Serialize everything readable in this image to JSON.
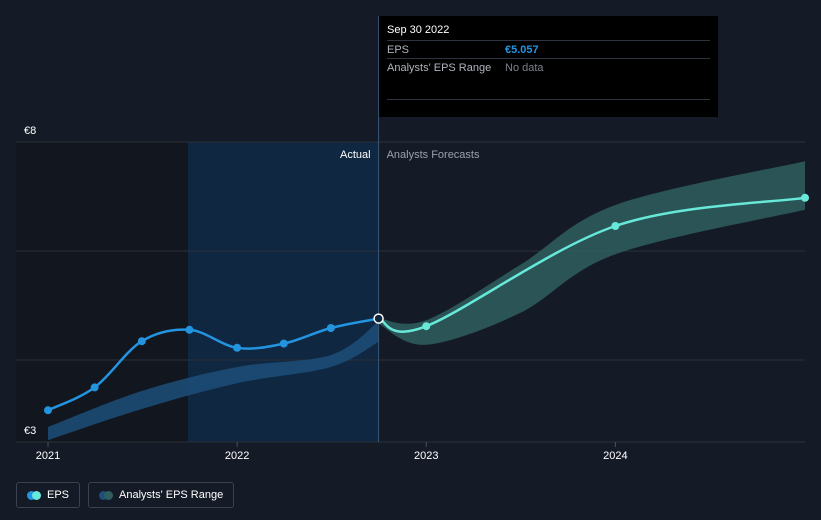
{
  "tooltip": {
    "date": "Sep 30 2022",
    "rows": [
      {
        "key": "EPS",
        "value": "€5.057"
      },
      {
        "key": "Analysts' EPS Range",
        "value": "No data"
      }
    ]
  },
  "sections": {
    "actual_label": "Actual",
    "forecast_label": "Analysts Forecasts"
  },
  "legend": {
    "eps_label": "EPS",
    "range_label": "Analysts' EPS Range"
  },
  "colors": {
    "background": "#151b26",
    "past_highlight": "#0f2740",
    "eps_actual": "#2394df",
    "eps_forecast": "#67e8d8",
    "range_actual": "#1c4f7a",
    "range_forecast": "#2e5e5f"
  },
  "chart_data": {
    "type": "line",
    "y_tick_labels": [
      "€3",
      "€8"
    ],
    "ylim": [
      3,
      8
    ],
    "x_tick_labels": [
      "2021",
      "2022",
      "2023",
      "2024"
    ],
    "xlim": [
      "2020-12-31",
      "2024-12-31"
    ],
    "grid": true,
    "series": [
      {
        "name": "EPS",
        "kind": "actual",
        "points": [
          {
            "x": "2020-12-31",
            "y": 3.53
          },
          {
            "x": "2021-03-31",
            "y": 3.91
          },
          {
            "x": "2021-06-30",
            "y": 4.68
          },
          {
            "x": "2021-09-30",
            "y": 4.87
          },
          {
            "x": "2021-12-31",
            "y": 4.57
          },
          {
            "x": "2022-03-31",
            "y": 4.64
          },
          {
            "x": "2022-06-30",
            "y": 4.9
          },
          {
            "x": "2022-09-30",
            "y": 5.057
          }
        ]
      },
      {
        "name": "EPS",
        "kind": "forecast",
        "points": [
          {
            "x": "2022-09-30",
            "y": 5.057
          },
          {
            "x": "2022-12-31",
            "y": 4.93
          },
          {
            "x": "2023-12-31",
            "y": 6.6
          },
          {
            "x": "2024-12-31",
            "y": 7.07
          }
        ]
      },
      {
        "name": "Analysts' EPS Range",
        "kind": "actual_range",
        "upper": [
          {
            "x": "2020-12-31",
            "y": 3.25
          },
          {
            "x": "2021-06-30",
            "y": 3.85
          },
          {
            "x": "2021-12-31",
            "y": 4.25
          },
          {
            "x": "2022-06-30",
            "y": 4.45
          },
          {
            "x": "2022-09-30",
            "y": 5.01
          }
        ],
        "lower": [
          {
            "x": "2020-12-31",
            "y": 3.03
          },
          {
            "x": "2021-06-30",
            "y": 3.55
          },
          {
            "x": "2021-12-31",
            "y": 3.98
          },
          {
            "x": "2022-06-30",
            "y": 4.25
          },
          {
            "x": "2022-09-30",
            "y": 4.67
          }
        ]
      },
      {
        "name": "Analysts' EPS Range",
        "kind": "forecast_range",
        "upper": [
          {
            "x": "2022-09-30",
            "y": 5.06
          },
          {
            "x": "2022-12-31",
            "y": 5.03
          },
          {
            "x": "2023-06-30",
            "y": 5.95
          },
          {
            "x": "2023-12-31",
            "y": 6.95
          },
          {
            "x": "2024-12-31",
            "y": 7.68
          }
        ],
        "lower": [
          {
            "x": "2022-09-30",
            "y": 4.97
          },
          {
            "x": "2022-12-31",
            "y": 4.62
          },
          {
            "x": "2023-06-30",
            "y": 5.15
          },
          {
            "x": "2023-12-31",
            "y": 6.13
          },
          {
            "x": "2024-12-31",
            "y": 6.87
          }
        ]
      }
    ],
    "highlight": {
      "x": "2022-09-30",
      "y": 5.057
    }
  }
}
